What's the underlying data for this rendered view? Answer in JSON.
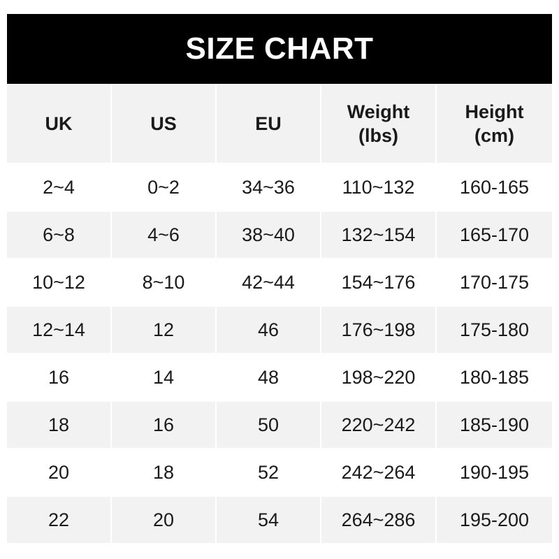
{
  "title": "SIZE CHART",
  "columns": [
    {
      "line1": "UK",
      "line2": ""
    },
    {
      "line1": "US",
      "line2": ""
    },
    {
      "line1": "EU",
      "line2": ""
    },
    {
      "line1": "Weight",
      "line2": "(lbs)"
    },
    {
      "line1": "Height",
      "line2": "(cm)"
    }
  ],
  "rows": [
    [
      "2~4",
      "0~2",
      "34~36",
      "110~132",
      "160-165"
    ],
    [
      "6~8",
      "4~6",
      "38~40",
      "132~154",
      "165-170"
    ],
    [
      "10~12",
      "8~10",
      "42~44",
      "154~176",
      "170-175"
    ],
    [
      "12~14",
      "12",
      "46",
      "176~198",
      "175-180"
    ],
    [
      "16",
      "14",
      "48",
      "198~220",
      "180-185"
    ],
    [
      "18",
      "16",
      "50",
      "220~242",
      "185-190"
    ],
    [
      "20",
      "18",
      "52",
      "242~264",
      "190-195"
    ],
    [
      "22",
      "20",
      "54",
      "264~286",
      "195-200"
    ]
  ],
  "colors": {
    "title_bg": "#000000",
    "stripe": "#f2f2f2"
  }
}
